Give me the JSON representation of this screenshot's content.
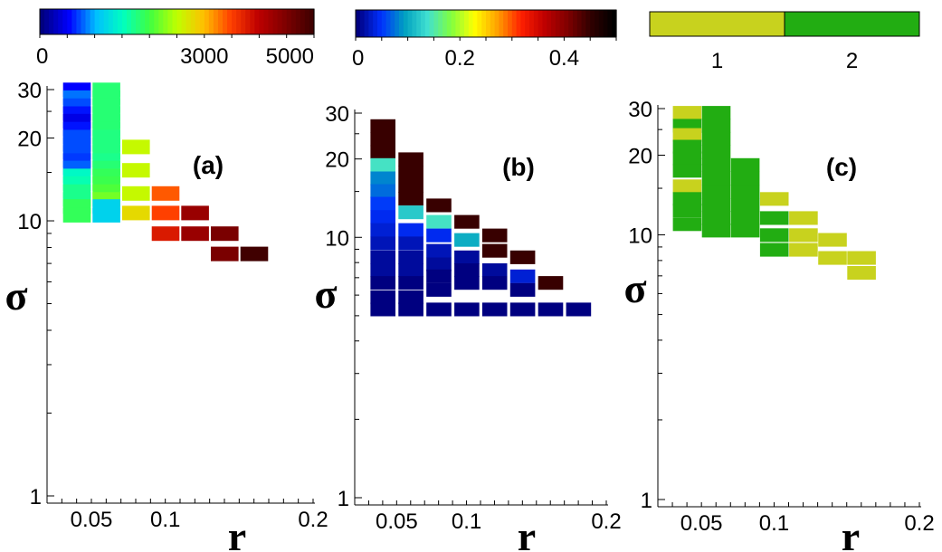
{
  "chart_data": [
    {
      "type": "heatmap",
      "panel_label": "(a)",
      "xlabel": "r",
      "ylabel": "σ",
      "x_scale": "linear",
      "y_scale": "log",
      "xlim": [
        0.02,
        0.2
      ],
      "ylim": [
        1,
        30
      ],
      "x_ticks": [
        {
          "value": 0.05,
          "label": "0.05"
        },
        {
          "value": 0.1,
          "label": "0.1"
        },
        {
          "value": 0.2,
          "label": "0.2"
        }
      ],
      "y_ticks": [
        {
          "value": 1,
          "label": "1"
        },
        {
          "value": 10,
          "label": "10"
        },
        {
          "value": 20,
          "label": "20"
        },
        {
          "value": 30,
          "label": "30"
        }
      ],
      "colorbar": {
        "kind": "continuous",
        "range": [
          0,
          5000
        ],
        "tick_labels": [
          {
            "value": 0,
            "label": "0"
          },
          {
            "value": 3000,
            "label": "3000"
          },
          {
            "value": 5000,
            "label": "5000"
          }
        ],
        "colormap": [
          "#000080",
          "#0000ff",
          "#00bfff",
          "#00ffbf",
          "#40ff40",
          "#bfff00",
          "#ffbf00",
          "#ff4000",
          "#bf0000",
          "#800000",
          "#400000"
        ]
      },
      "columns": [
        {
          "r": 0.04,
          "cells": [
            {
              "sigma": 30,
              "value": 500
            },
            {
              "sigma": 28.1,
              "value": 800
            },
            {
              "sigma": 26.3,
              "value": 700
            },
            {
              "sigma": 24.6,
              "value": 550
            },
            {
              "sigma": 23.1,
              "value": 400
            },
            {
              "sigma": 21.6,
              "value": 550
            },
            {
              "sigma": 20.2,
              "value": 700
            },
            {
              "sigma": 19.0,
              "value": 700
            },
            {
              "sigma": 17.8,
              "value": 700
            },
            {
              "sigma": 16.6,
              "value": 650
            },
            {
              "sigma": 15.6,
              "value": 750
            },
            {
              "sigma": 14.6,
              "value": 1450
            },
            {
              "sigma": 13.7,
              "value": 1550
            },
            {
              "sigma": 12.8,
              "value": 1700
            },
            {
              "sigma": 12.0,
              "value": 1700
            },
            {
              "sigma": 11.3,
              "value": 1900
            },
            {
              "sigma": 10.5,
              "value": 1900
            }
          ]
        },
        {
          "r": 0.06,
          "cells": [
            {
              "sigma": 30,
              "value": 1800
            },
            {
              "sigma": 28.1,
              "value": 1800
            },
            {
              "sigma": 26.3,
              "value": 1800
            },
            {
              "sigma": 24.6,
              "value": 1800
            },
            {
              "sigma": 23.1,
              "value": 1800
            },
            {
              "sigma": 21.6,
              "value": 1800
            },
            {
              "sigma": 20.2,
              "value": 1750
            },
            {
              "sigma": 19.0,
              "value": 1750
            },
            {
              "sigma": 17.8,
              "value": 1750
            },
            {
              "sigma": 16.6,
              "value": 1700
            },
            {
              "sigma": 15.6,
              "value": 1800
            },
            {
              "sigma": 14.6,
              "value": 1900
            },
            {
              "sigma": 13.7,
              "value": 1950
            },
            {
              "sigma": 12.8,
              "value": 2050
            },
            {
              "sigma": 12.0,
              "value": 2200
            },
            {
              "sigma": 11.3,
              "value": 1150
            },
            {
              "sigma": 10.5,
              "value": 1150
            }
          ]
        },
        {
          "r": 0.08,
          "cells": [
            {
              "sigma": 18.6,
              "value": 2550
            },
            {
              "sigma": 15.3,
              "value": 2550
            },
            {
              "sigma": 12.6,
              "value": 2550
            },
            {
              "sigma": 10.7,
              "value": 2800
            }
          ]
        },
        {
          "r": 0.1,
          "cells": [
            {
              "sigma": 12.6,
              "value": 3400
            },
            {
              "sigma": 10.7,
              "value": 3500
            },
            {
              "sigma": 9.0,
              "value": 3800
            }
          ]
        },
        {
          "r": 0.12,
          "cells": [
            {
              "sigma": 10.7,
              "value": 4300
            },
            {
              "sigma": 9.0,
              "value": 4300
            }
          ]
        },
        {
          "r": 0.14,
          "cells": [
            {
              "sigma": 9.0,
              "value": 4550
            },
            {
              "sigma": 7.6,
              "value": 4550
            }
          ]
        },
        {
          "r": 0.16,
          "cells": [
            {
              "sigma": 7.6,
              "value": 5000
            }
          ]
        }
      ]
    },
    {
      "type": "heatmap",
      "panel_label": "(b)",
      "xlabel": "r",
      "ylabel": "σ",
      "x_scale": "linear",
      "y_scale": "log",
      "xlim": [
        0.02,
        0.2
      ],
      "ylim": [
        1,
        30
      ],
      "x_ticks": [
        {
          "value": 0.05,
          "label": "0.05"
        },
        {
          "value": 0.1,
          "label": "0.1"
        },
        {
          "value": 0.2,
          "label": "0.2"
        }
      ],
      "y_ticks": [
        {
          "value": 1,
          "label": "1"
        },
        {
          "value": 10,
          "label": "10"
        },
        {
          "value": 20,
          "label": "20"
        },
        {
          "value": 30,
          "label": "30"
        }
      ],
      "colorbar": {
        "kind": "continuous",
        "range": [
          0,
          0.5
        ],
        "tick_labels": [
          {
            "value": 0,
            "label": "0"
          },
          {
            "value": 0.2,
            "label": "0.2"
          },
          {
            "value": 0.4,
            "label": "0.4"
          }
        ],
        "colormap": [
          "#000080",
          "#0030ff",
          "#00a0c0",
          "#40e0d0",
          "#80ff40",
          "#ffff00",
          "#ffa000",
          "#ff2000",
          "#c00000",
          "#800000",
          "#300000",
          "#000000"
        ]
      },
      "columns": [
        {
          "r": 0.04,
          "cells": [
            {
              "sigma": 26.8,
              "value": 0.45
            },
            {
              "sigma": 23.9,
              "value": 0.45
            },
            {
              "sigma": 21.3,
              "value": 0.45
            },
            {
              "sigma": 19.0,
              "value": 0.14
            },
            {
              "sigma": 16.9,
              "value": 0.08
            },
            {
              "sigma": 15.1,
              "value": 0.07
            },
            {
              "sigma": 13.5,
              "value": 0.05
            },
            {
              "sigma": 12.0,
              "value": 0.04
            },
            {
              "sigma": 10.7,
              "value": 0.03
            },
            {
              "sigma": 9.5,
              "value": 0.02
            },
            {
              "sigma": 8.4,
              "value": 0.01
            },
            {
              "sigma": 7.5,
              "value": 0.01
            },
            {
              "sigma": 6.7,
              "value": 0.0
            },
            {
              "sigma": 5.9,
              "value": 0.0
            },
            {
              "sigma": 5.3,
              "value": 0.0
            }
          ]
        },
        {
          "r": 0.06,
          "cells": [
            {
              "sigma": 20.0,
              "value": 0.45
            },
            {
              "sigma": 17.8,
              "value": 0.45
            },
            {
              "sigma": 15.8,
              "value": 0.45
            },
            {
              "sigma": 14.1,
              "value": 0.45
            },
            {
              "sigma": 12.5,
              "value": 0.12
            },
            {
              "sigma": 10.7,
              "value": 0.04
            },
            {
              "sigma": 9.5,
              "value": 0.02
            },
            {
              "sigma": 8.4,
              "value": 0.01
            },
            {
              "sigma": 7.5,
              "value": 0.01
            },
            {
              "sigma": 6.7,
              "value": 0.0
            },
            {
              "sigma": 5.9,
              "value": 0.0
            },
            {
              "sigma": 5.3,
              "value": 0.0
            }
          ]
        },
        {
          "r": 0.08,
          "cells": [
            {
              "sigma": 13.3,
              "value": 0.45
            },
            {
              "sigma": 11.5,
              "value": 0.14
            },
            {
              "sigma": 10.2,
              "value": 0.04
            },
            {
              "sigma": 8.9,
              "value": 0.02
            },
            {
              "sigma": 7.9,
              "value": 0.01
            },
            {
              "sigma": 7.1,
              "value": 0.0
            },
            {
              "sigma": 6.3,
              "value": 0.0
            },
            {
              "sigma": 5.3,
              "value": 0.0
            }
          ]
        },
        {
          "r": 0.1,
          "cells": [
            {
              "sigma": 11.5,
              "value": 0.45
            },
            {
              "sigma": 9.8,
              "value": 0.1
            },
            {
              "sigma": 8.4,
              "value": 0.01
            },
            {
              "sigma": 7.5,
              "value": 0.0
            },
            {
              "sigma": 6.7,
              "value": 0.0
            },
            {
              "sigma": 5.3,
              "value": 0.0
            }
          ]
        },
        {
          "r": 0.12,
          "cells": [
            {
              "sigma": 10.2,
              "value": 0.45
            },
            {
              "sigma": 8.9,
              "value": 0.45
            },
            {
              "sigma": 7.5,
              "value": 0.01
            },
            {
              "sigma": 6.7,
              "value": 0.0
            },
            {
              "sigma": 5.3,
              "value": 0.0
            }
          ]
        },
        {
          "r": 0.14,
          "cells": [
            {
              "sigma": 8.4,
              "value": 0.45
            },
            {
              "sigma": 7.1,
              "value": 0.03
            },
            {
              "sigma": 6.3,
              "value": 0.0
            },
            {
              "sigma": 5.3,
              "value": 0.0
            }
          ]
        },
        {
          "r": 0.16,
          "cells": [
            {
              "sigma": 6.7,
              "value": 0.45
            },
            {
              "sigma": 5.3,
              "value": 0.0
            }
          ]
        },
        {
          "r": 0.18,
          "cells": [
            {
              "sigma": 5.3,
              "value": 0.0
            }
          ]
        }
      ]
    },
    {
      "type": "heatmap",
      "panel_label": "(c)",
      "xlabel": "r",
      "ylabel": "σ",
      "x_scale": "linear",
      "y_scale": "log",
      "xlim": [
        0.02,
        0.2
      ],
      "ylim": [
        1,
        30
      ],
      "x_ticks": [
        {
          "value": 0.05,
          "label": "0.05"
        },
        {
          "value": 0.1,
          "label": "0.1"
        },
        {
          "value": 0.2,
          "label": "0.2"
        }
      ],
      "y_ticks": [
        {
          "value": 1,
          "label": "1"
        },
        {
          "value": 10,
          "label": "10"
        },
        {
          "value": 20,
          "label": "20"
        },
        {
          "value": 30,
          "label": "30"
        }
      ],
      "colorbar": {
        "kind": "categorical",
        "categories": [
          {
            "value": 1,
            "label": "1",
            "color": "#c8d21e"
          },
          {
            "value": 2,
            "label": "2",
            "color": "#22ad12"
          }
        ]
      },
      "columns": [
        {
          "r": 0.04,
          "cells": [
            {
              "sigma": 29.0,
              "value": 1
            },
            {
              "sigma": 25.9,
              "value": 2
            },
            {
              "sigma": 23.9,
              "value": 1
            },
            {
              "sigma": 21.6,
              "value": 2
            },
            {
              "sigma": 19.5,
              "value": 2
            },
            {
              "sigma": 17.5,
              "value": 2
            },
            {
              "sigma": 15.3,
              "value": 1
            },
            {
              "sigma": 13.7,
              "value": 2
            },
            {
              "sigma": 12.4,
              "value": 2
            },
            {
              "sigma": 11.0,
              "value": 2
            }
          ]
        },
        {
          "r": 0.06,
          "cells": [
            {
              "sigma": 29.0,
              "value": 2
            },
            {
              "sigma": 25.9,
              "value": 2
            },
            {
              "sigma": 23.1,
              "value": 2
            },
            {
              "sigma": 20.6,
              "value": 2
            },
            {
              "sigma": 18.4,
              "value": 2
            },
            {
              "sigma": 16.4,
              "value": 2
            },
            {
              "sigma": 14.6,
              "value": 2
            },
            {
              "sigma": 13.0,
              "value": 2
            },
            {
              "sigma": 11.6,
              "value": 2
            },
            {
              "sigma": 10.4,
              "value": 2
            }
          ]
        },
        {
          "r": 0.08,
          "cells": [
            {
              "sigma": 18.4,
              "value": 2
            },
            {
              "sigma": 16.4,
              "value": 2
            },
            {
              "sigma": 14.6,
              "value": 2
            },
            {
              "sigma": 13.0,
              "value": 2
            },
            {
              "sigma": 11.6,
              "value": 2
            },
            {
              "sigma": 10.4,
              "value": 2
            }
          ]
        },
        {
          "r": 0.1,
          "cells": [
            {
              "sigma": 13.7,
              "value": 1
            },
            {
              "sigma": 11.6,
              "value": 2
            },
            {
              "sigma": 10.0,
              "value": 2
            },
            {
              "sigma": 8.8,
              "value": 2
            }
          ]
        },
        {
          "r": 0.12,
          "cells": [
            {
              "sigma": 11.6,
              "value": 1
            },
            {
              "sigma": 10.0,
              "value": 1
            },
            {
              "sigma": 8.8,
              "value": 1
            }
          ]
        },
        {
          "r": 0.14,
          "cells": [
            {
              "sigma": 9.6,
              "value": 1
            },
            {
              "sigma": 8.2,
              "value": 1
            }
          ]
        },
        {
          "r": 0.16,
          "cells": [
            {
              "sigma": 8.2,
              "value": 1
            },
            {
              "sigma": 7.2,
              "value": 1
            }
          ]
        }
      ]
    }
  ]
}
